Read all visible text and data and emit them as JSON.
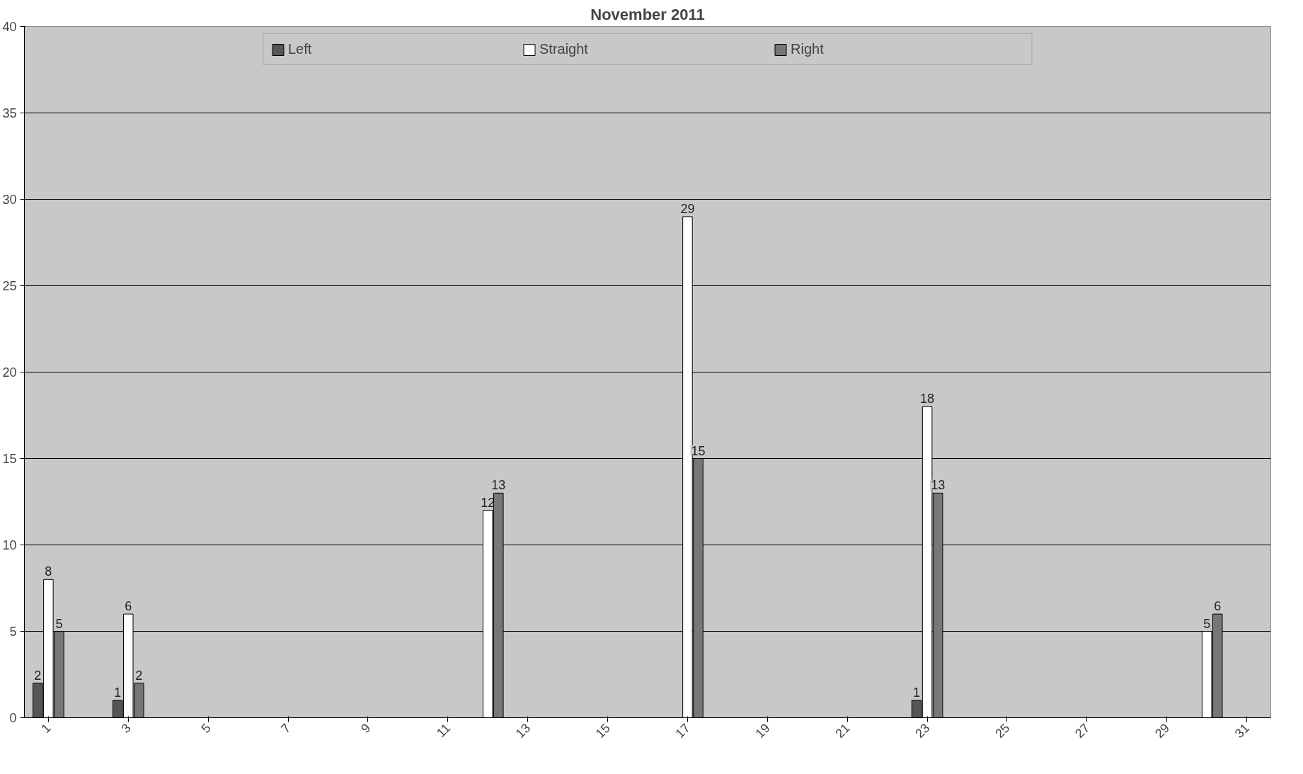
{
  "chart_data": {
    "type": "bar",
    "title": "November 2011",
    "categories": [
      "1",
      null,
      "3",
      null,
      "5",
      null,
      "7",
      null,
      "9",
      null,
      "11",
      null,
      "13",
      null,
      "15",
      null,
      "17",
      null,
      "19",
      null,
      "21",
      null,
      "23",
      null,
      "25",
      null,
      "27",
      null,
      "29",
      null,
      "31"
    ],
    "series": [
      {
        "name": "Left",
        "color": "#555555",
        "values": [
          2,
          null,
          1,
          null,
          null,
          null,
          null,
          null,
          null,
          null,
          null,
          null,
          null,
          null,
          null,
          null,
          null,
          null,
          null,
          null,
          null,
          null,
          1,
          null,
          null,
          null,
          null,
          null,
          null,
          null,
          null
        ]
      },
      {
        "name": "Straight",
        "color": "#ffffff",
        "values": [
          8,
          null,
          6,
          null,
          null,
          null,
          null,
          null,
          null,
          null,
          null,
          12,
          null,
          null,
          null,
          null,
          29,
          null,
          null,
          null,
          null,
          null,
          18,
          null,
          null,
          null,
          null,
          null,
          null,
          5,
          null
        ]
      },
      {
        "name": "Right",
        "color": "#777777",
        "values": [
          5,
          null,
          2,
          null,
          null,
          null,
          null,
          null,
          null,
          null,
          null,
          13,
          null,
          null,
          null,
          null,
          15,
          null,
          null,
          null,
          null,
          null,
          13,
          null,
          null,
          null,
          null,
          null,
          null,
          6,
          null
        ]
      }
    ],
    "ylim": [
      0,
      40
    ],
    "yticks": [
      0,
      5,
      10,
      15,
      20,
      25,
      30,
      35,
      40
    ],
    "grid": "y",
    "legend": "top",
    "data_labels": true
  }
}
